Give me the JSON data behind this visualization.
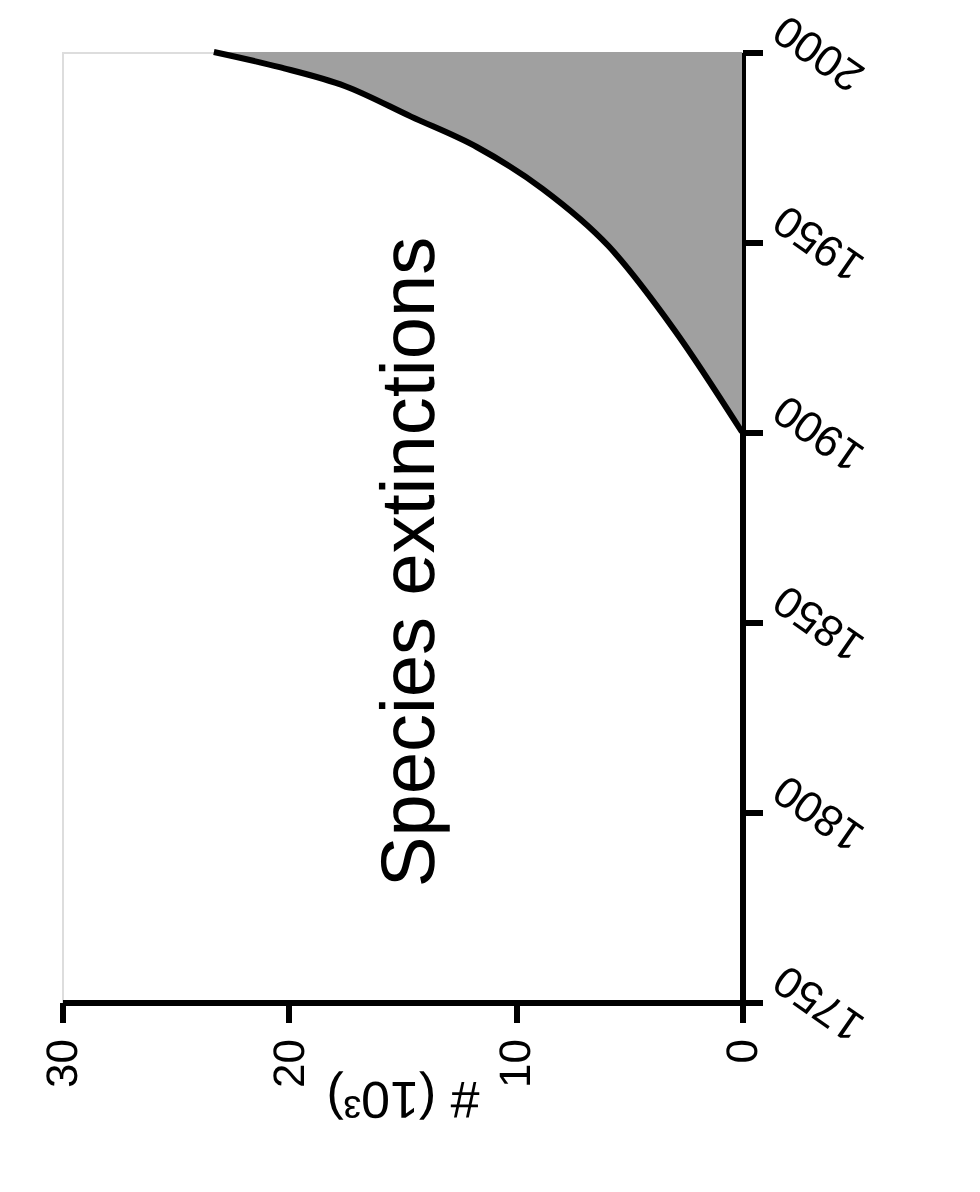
{
  "chart_data": {
    "type": "area",
    "orientation": "horizontal",
    "title": "Species extinctions",
    "xlabel": "# (10³)",
    "x": [
      1900,
      1927,
      1949,
      1964,
      1975,
      1983,
      1991,
      1996,
      2000
    ],
    "series": [
      {
        "color": "#a0a0a0",
        "values": [
          0,
          3.0,
          5.9,
          8.8,
          11.7,
          14.6,
          17.5,
          20.4,
          23.3
        ]
      }
    ],
    "xlim": [
      30,
      0
    ],
    "xticks": [
      30,
      20,
      10,
      0
    ],
    "ylim": [
      1750,
      2000
    ],
    "yticks": [
      1750,
      1800,
      1850,
      1900,
      1950,
      2000
    ],
    "grid": false
  }
}
